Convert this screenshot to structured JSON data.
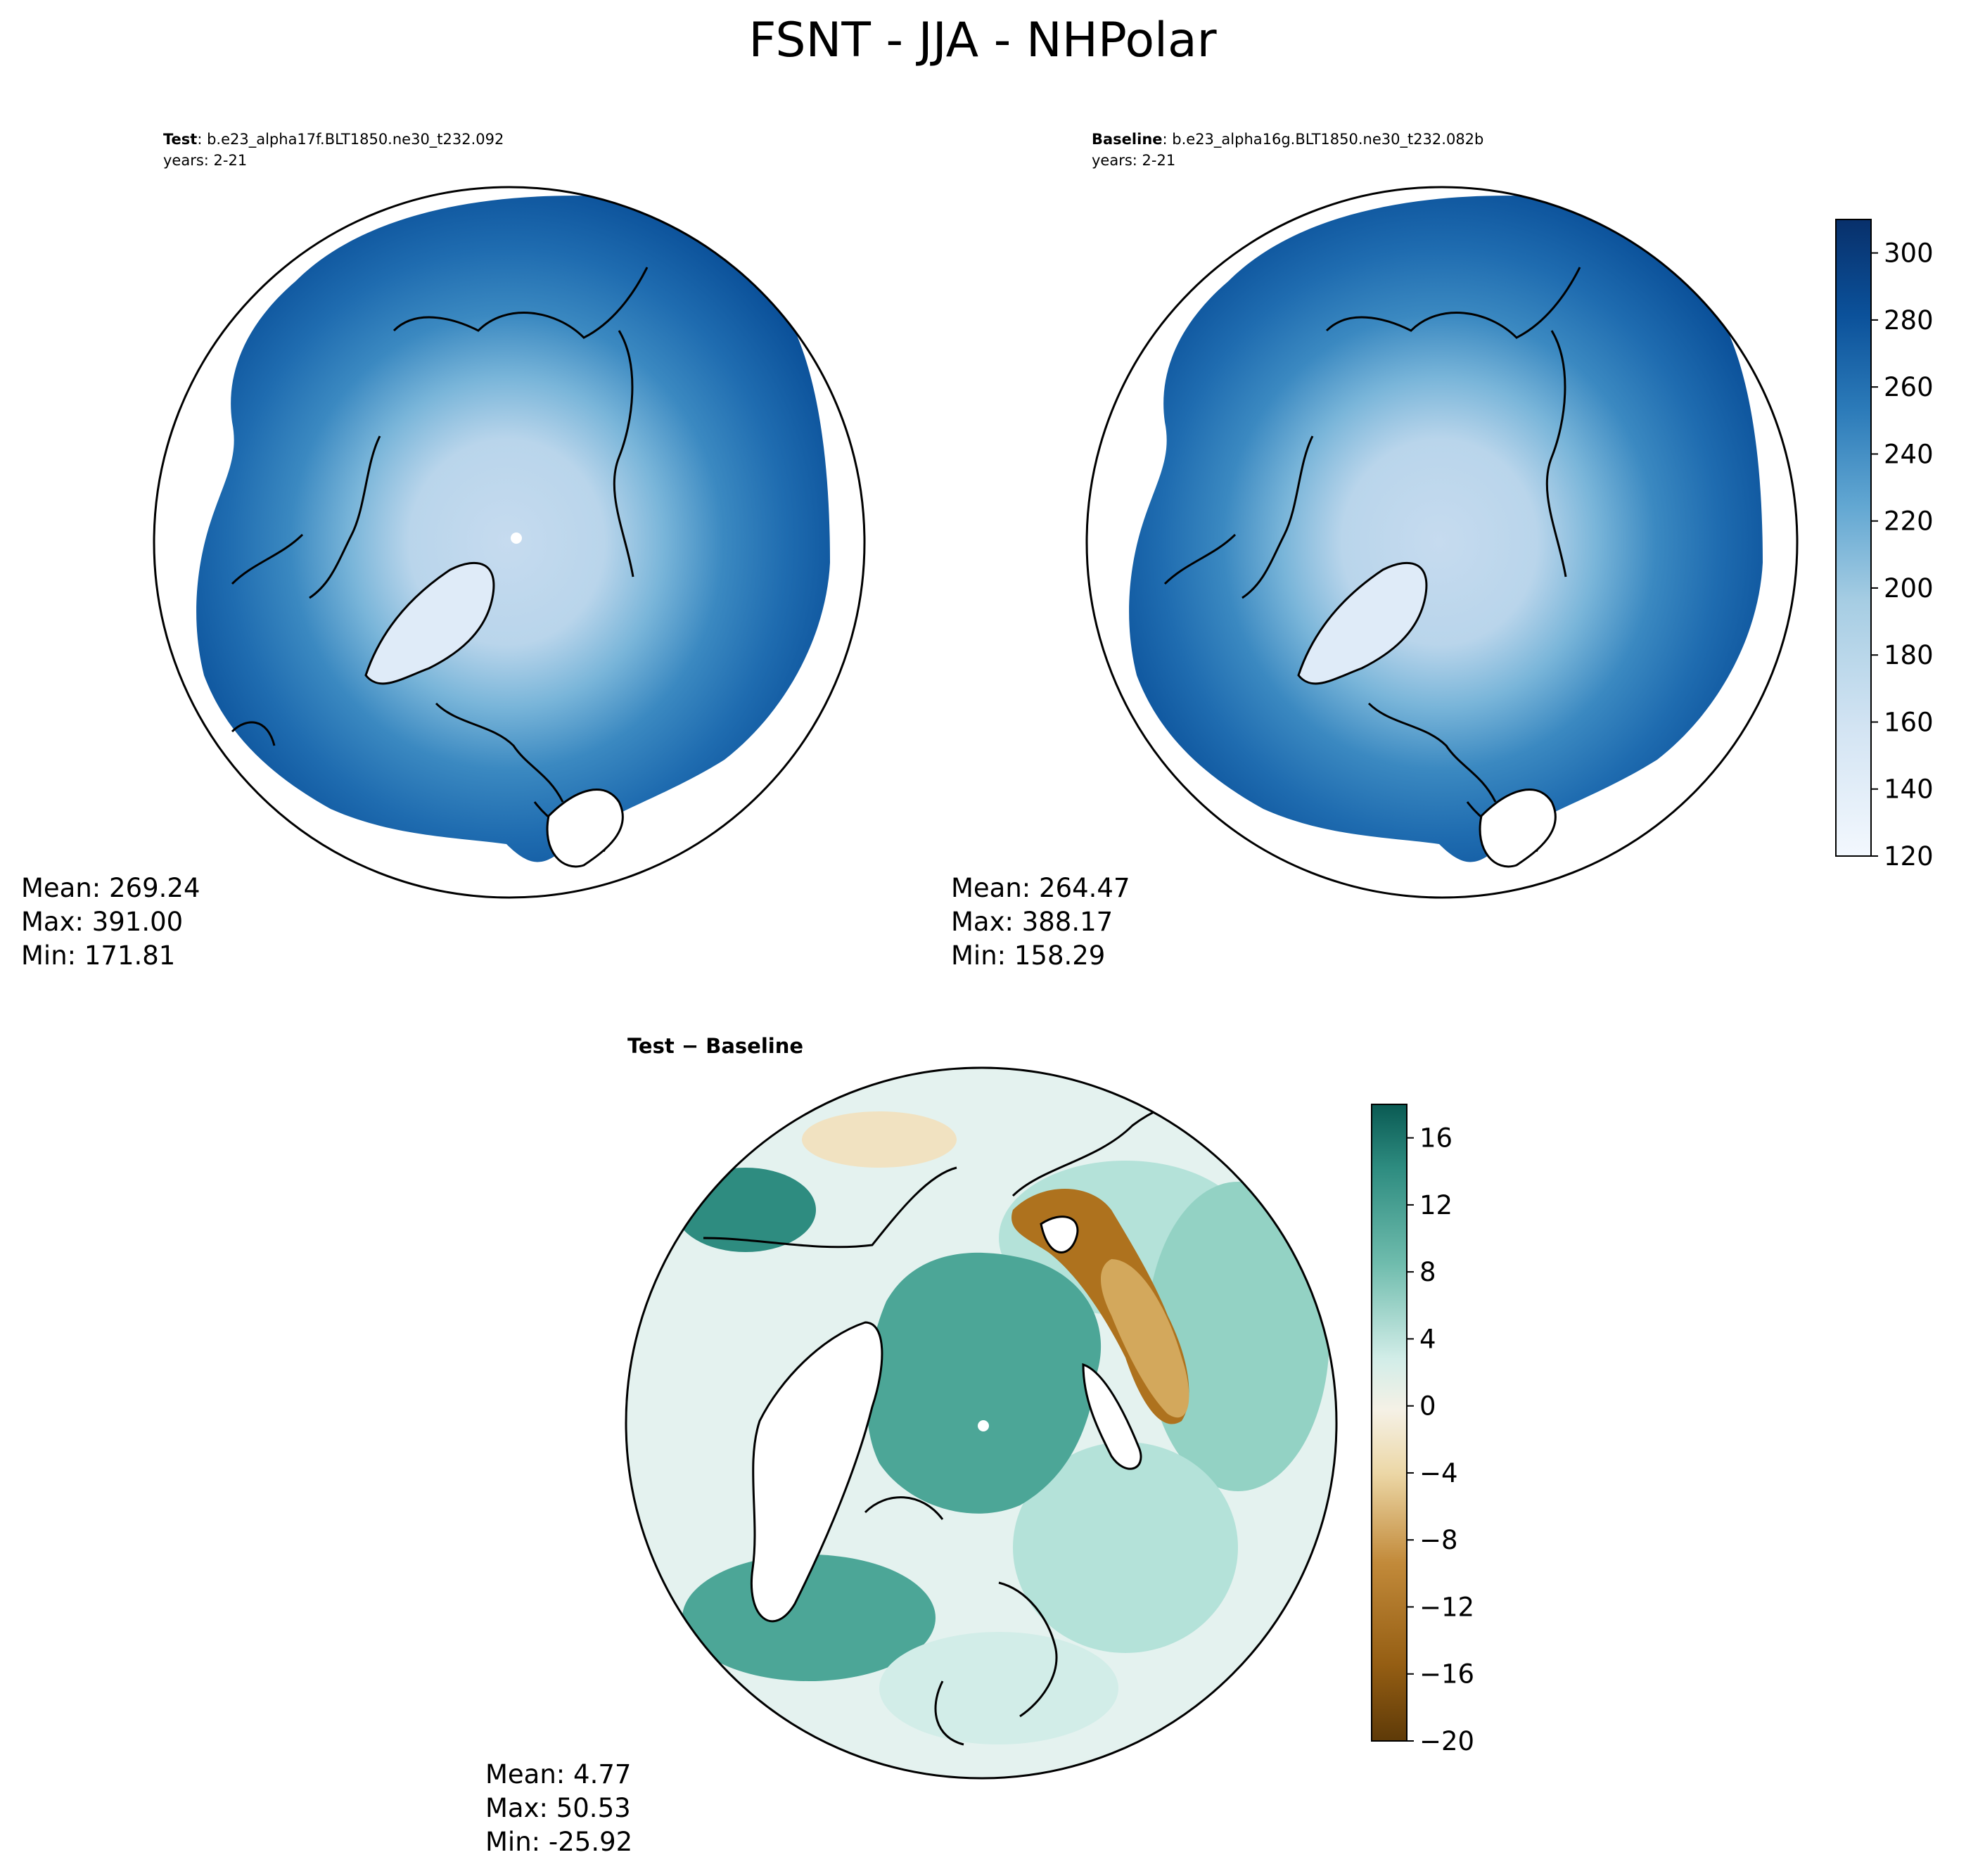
{
  "figure": {
    "title": "FSNT - JJA - NHPolar"
  },
  "panels": {
    "test": {
      "label": "Test",
      "case": ": b.e23_alpha17f.BLT1850.ne30_t232.092",
      "years": "years: 2-21",
      "stats": {
        "mean": "Mean: 269.24",
        "max": "Max: 391.00",
        "min": "Min: 171.81"
      }
    },
    "baseline": {
      "label": "Baseline",
      "case": ": b.e23_alpha16g.BLT1850.ne30_t232.082b",
      "years": "years: 2-21",
      "stats": {
        "mean": "Mean: 264.47",
        "max": "Max: 388.17",
        "min": "Min: 158.29"
      }
    },
    "diff": {
      "label": "Test − Baseline",
      "stats": {
        "mean": "Mean:  4.77",
        "max": "Max: 50.53",
        "min": "Min: -25.92"
      }
    }
  },
  "chart_data": [
    {
      "type": "heatmap",
      "projection": "north-polar-stereographic",
      "title": "Test : b.e23_alpha17f.BLT1850.ne30_t232.092",
      "subtitle": "years: 2-21",
      "stats": {
        "mean": 269.24,
        "max": 391.0,
        "min": 171.81
      },
      "colorbar": "shared-right"
    },
    {
      "type": "heatmap",
      "projection": "north-polar-stereographic",
      "title": "Baseline : b.e23_alpha16g.BLT1850.ne30_t232.082b",
      "subtitle": "years: 2-21",
      "stats": {
        "mean": 264.47,
        "max": 388.17,
        "min": 158.29
      },
      "colorbar": {
        "range": [
          120,
          310
        ],
        "levels": [
          120,
          130,
          140,
          150,
          160,
          170,
          180,
          190,
          200,
          210,
          220,
          230,
          240,
          250,
          260,
          270,
          280,
          290,
          300,
          310
        ],
        "ticks": [
          120,
          140,
          160,
          180,
          200,
          220,
          240,
          260,
          280,
          300
        ],
        "tick_labels": [
          "120",
          "140",
          "160",
          "180",
          "200",
          "220",
          "240",
          "260",
          "280",
          "300"
        ],
        "colormap": "Blues",
        "colors": [
          "#f3f8fe",
          "#e9f2fb",
          "#deebf7",
          "#d3e4f3",
          "#c6dbef",
          "#b5d4e9",
          "#a6cde3",
          "#91c3de",
          "#79b5d9",
          "#62a7d2",
          "#4d98c9",
          "#3b89c1",
          "#2c7bb9",
          "#1f6cb0",
          "#135fa7",
          "#0b519a",
          "#08468a",
          "#083b78",
          "#08306b"
        ]
      }
    },
    {
      "type": "heatmap",
      "projection": "north-polar-stereographic",
      "title": "Test − Baseline",
      "stats": {
        "mean": 4.77,
        "max": 50.53,
        "min": -25.92
      },
      "colorbar": {
        "range": [
          -20,
          18
        ],
        "levels": [
          -20,
          -18,
          -16,
          -14,
          -12,
          -10,
          -8,
          -6,
          -4,
          -2,
          0,
          2,
          4,
          6,
          8,
          10,
          12,
          14,
          16,
          18
        ],
        "ticks": [
          -20,
          -16,
          -12,
          -8,
          -4,
          0,
          4,
          8,
          12,
          16
        ],
        "tick_labels": [
          "−20",
          "−16",
          "−12",
          "−8",
          "−4",
          "0",
          "4",
          "8",
          "12",
          "16"
        ],
        "colormap": "BrBG",
        "colors": [
          "#5e3a08",
          "#7a4b0b",
          "#955e13",
          "#ae721e",
          "#c28a3a",
          "#d3a85c",
          "#e1c080",
          "#ecd7a6",
          "#f4e8cc",
          "#f5f1e6",
          "#e9f4f2",
          "#d2ede8",
          "#b4e2d9",
          "#93d2c4",
          "#6fbcad",
          "#4ca697",
          "#2e8c80",
          "#17736a",
          "#0a5a53"
        ]
      }
    }
  ],
  "colors": {
    "ocean_white": "#ffffff",
    "coastline": "#000000"
  }
}
